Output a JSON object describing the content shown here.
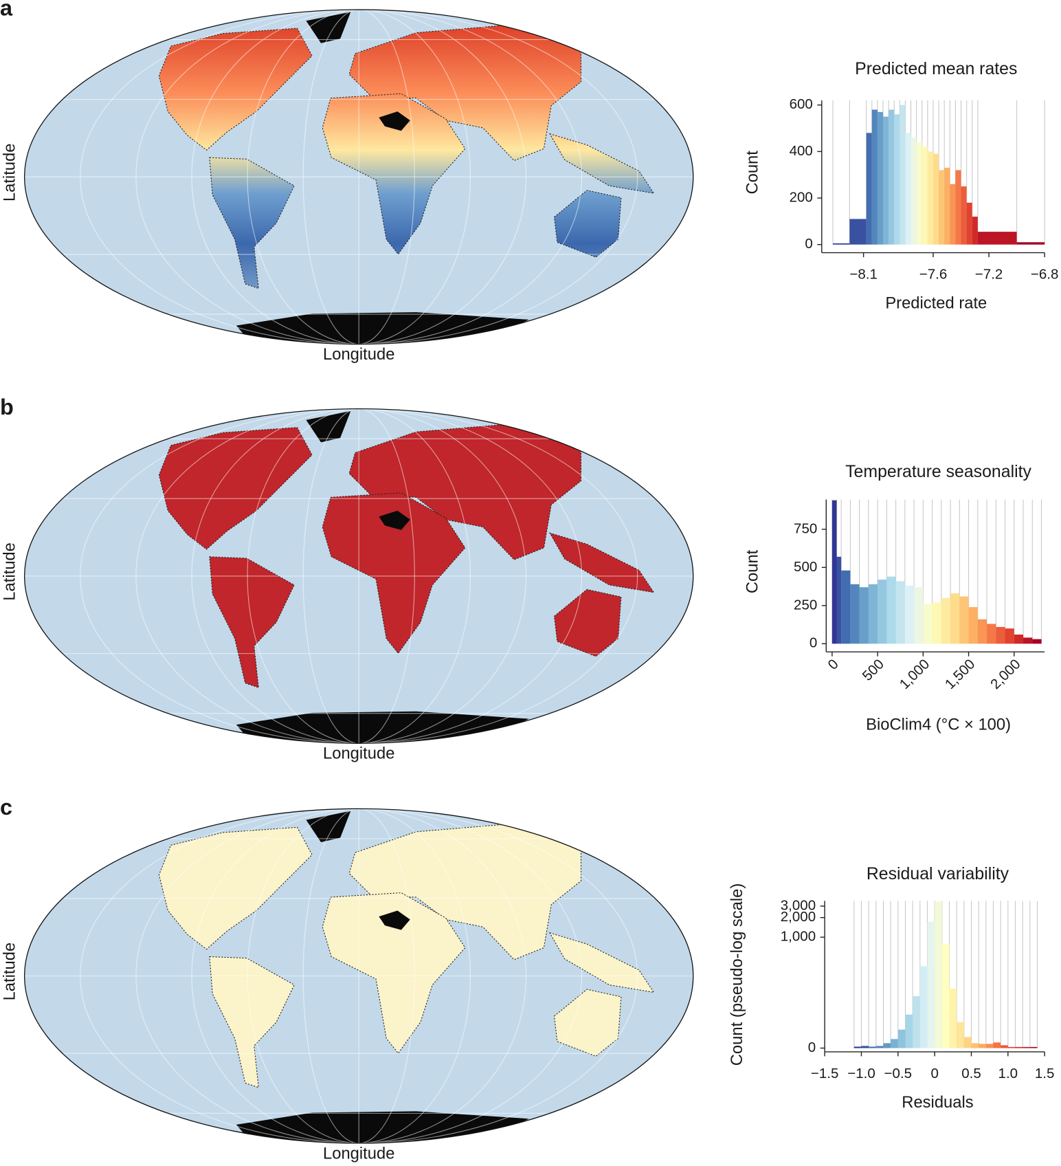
{
  "panels": [
    {
      "label": "a",
      "map": {
        "x_label": "Longitude",
        "y_label": "Latitude"
      }
    },
    {
      "label": "b",
      "map": {
        "x_label": "Longitude",
        "y_label": "Latitude"
      }
    },
    {
      "label": "c",
      "map": {
        "x_label": "Longitude",
        "y_label": "Latitude"
      }
    }
  ],
  "chart_data": [
    {
      "type": "histogram",
      "title": "Predicted mean rates",
      "x_label": "Predicted rate",
      "y_label": "Count",
      "bins": [
        -8.32,
        -8.2,
        -8.08,
        -8.04,
        -8,
        -7.96,
        -7.92,
        -7.88,
        -7.84,
        -7.8,
        -7.76,
        -7.72,
        -7.68,
        -7.64,
        -7.6,
        -7.56,
        -7.52,
        -7.48,
        -7.44,
        -7.4,
        -7.36,
        -7.32,
        -7.28,
        -7,
        -6.8
      ],
      "counts": [
        5,
        110,
        480,
        580,
        570,
        550,
        580,
        560,
        600,
        480,
        460,
        440,
        420,
        400,
        390,
        320,
        330,
        260,
        320,
        250,
        180,
        120,
        55,
        10
      ],
      "xlim": [
        -8.4,
        -6.8
      ],
      "xticks": [
        {
          "value": -8.1,
          "label": "−8.1"
        },
        {
          "value": -7.6,
          "label": "−7.6"
        },
        {
          "value": -7.2,
          "label": "−7.2"
        },
        {
          "value": -6.8,
          "label": "−6.8"
        }
      ],
      "ylim": [
        0,
        620
      ],
      "yticks": [
        0,
        200,
        400,
        600
      ],
      "grid": true,
      "palette": [
        "#313695",
        "#4575b4",
        "#74add1",
        "#abd9e9",
        "#e0f3f8",
        "#ffffbf",
        "#fee090",
        "#fdae61",
        "#f46d43",
        "#d73027",
        "#a50026"
      ]
    },
    {
      "type": "histogram",
      "title": "Temperature seasonality",
      "x_label": "BioClim4 (°C × 100)",
      "y_label": "Count",
      "bins": [
        0,
        50,
        100,
        200,
        300,
        400,
        500,
        600,
        700,
        800,
        900,
        1000,
        1100,
        1200,
        1300,
        1400,
        1500,
        1600,
        1700,
        1800,
        1900,
        2000,
        2100,
        2200,
        2300
      ],
      "counts": [
        940,
        570,
        480,
        390,
        370,
        390,
        420,
        440,
        410,
        380,
        370,
        260,
        270,
        300,
        330,
        310,
        240,
        160,
        130,
        110,
        100,
        60,
        40,
        30
      ],
      "xlim": [
        -65,
        2335
      ],
      "xticks": [
        0,
        500,
        {
          "value": 1000,
          "label": "1,000"
        },
        {
          "value": 1500,
          "label": "1,500"
        },
        {
          "value": 2000,
          "label": "2,000"
        }
      ],
      "x_tick_rotation": -45,
      "ylim": [
        0,
        945
      ],
      "yticks": [
        0,
        250,
        500,
        750
      ],
      "grid": true,
      "palette": [
        "#313695",
        "#4575b4",
        "#74add1",
        "#abd9e9",
        "#e0f3f8",
        "#ffffbf",
        "#fee090",
        "#fdae61",
        "#f46d43",
        "#d73027",
        "#a50026"
      ]
    },
    {
      "type": "histogram",
      "title": "Residual variability",
      "x_label": "Residuals",
      "y_label": "Count (pseudo-log scale)",
      "bins": [
        -1.1,
        -1,
        -0.9,
        -0.8,
        -0.7,
        -0.6,
        -0.5,
        -0.4,
        -0.3,
        -0.2,
        -0.1,
        0,
        0.1,
        0.2,
        0.3,
        0.4,
        0.5,
        0.6,
        0.7,
        0.8,
        0.9,
        1,
        1.1,
        1.2,
        1.3,
        1.4
      ],
      "counts": [
        2,
        3,
        2,
        3,
        7,
        13,
        28,
        59,
        122,
        359,
        1730,
        3500,
        787,
        161,
        42,
        16,
        7,
        6,
        6,
        8,
        4,
        1,
        0,
        0,
        1
      ],
      "xlim": [
        -1.5,
        1.5
      ],
      "xticks": [
        {
          "value": -1.5,
          "label": "−1.5"
        },
        {
          "value": -1,
          "label": "−1.0"
        },
        {
          "value": -0.5,
          "label": "−0.5"
        },
        0,
        0.5,
        {
          "value": 1,
          "label": "1.0"
        },
        1.5
      ],
      "yscale": "pseudo-log",
      "ylim": [
        0,
        3600
      ],
      "yticks": [
        0,
        {
          "value": 1000,
          "label": "1,000"
        },
        {
          "value": 2000,
          "label": "2,000"
        },
        {
          "value": 3000,
          "label": "3,000"
        }
      ],
      "grid": true,
      "palette": [
        "#313695",
        "#4575b4",
        "#74add1",
        "#abd9e9",
        "#e0f3f8",
        "#ffffbf",
        "#fee090",
        "#fdae61",
        "#f46d43",
        "#d73027",
        "#a50026"
      ]
    }
  ]
}
